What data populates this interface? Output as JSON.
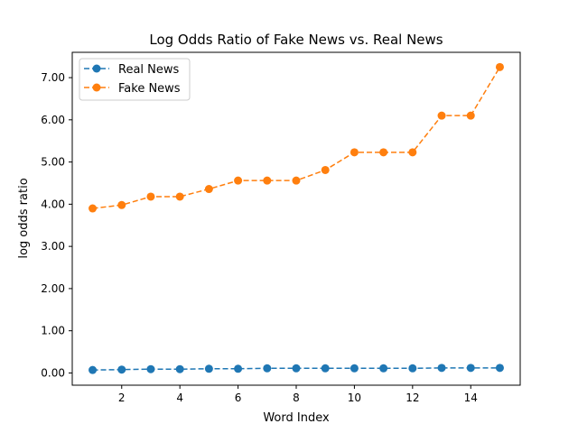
{
  "chart_data": {
    "type": "line",
    "title": "Log Odds Ratio of Fake News vs. Real News",
    "xlabel": "Word Index",
    "ylabel": "log odds ratio",
    "x": [
      1,
      2,
      3,
      4,
      5,
      6,
      7,
      8,
      9,
      10,
      11,
      12,
      13,
      14,
      15
    ],
    "xlim": [
      0.3,
      15.7
    ],
    "ylim": [
      -0.29,
      7.6
    ],
    "xticks": [
      2,
      4,
      6,
      8,
      10,
      12,
      14
    ],
    "xtick_labels": [
      "2",
      "4",
      "6",
      "8",
      "10",
      "12",
      "14"
    ],
    "yticks": [
      0,
      1,
      2,
      3,
      4,
      5,
      6,
      7
    ],
    "ytick_labels": [
      "0.00",
      "1.00",
      "2.00",
      "3.00",
      "4.00",
      "5.00",
      "6.00",
      "7.00"
    ],
    "grid": false,
    "legend_position": "top-left",
    "series": [
      {
        "name": "Real News",
        "color": "#1f77b4",
        "line_style": "dashed",
        "marker": "circle",
        "values": [
          0.07,
          0.08,
          0.09,
          0.09,
          0.1,
          0.1,
          0.11,
          0.11,
          0.11,
          0.11,
          0.11,
          0.11,
          0.12,
          0.12,
          0.12
        ]
      },
      {
        "name": "Fake News",
        "color": "#ff7f0e",
        "line_style": "dashed",
        "marker": "circle",
        "values": [
          3.9,
          3.98,
          4.18,
          4.18,
          4.36,
          4.56,
          4.56,
          4.56,
          4.81,
          5.23,
          5.23,
          5.23,
          6.1,
          6.1,
          7.25
        ]
      }
    ]
  }
}
